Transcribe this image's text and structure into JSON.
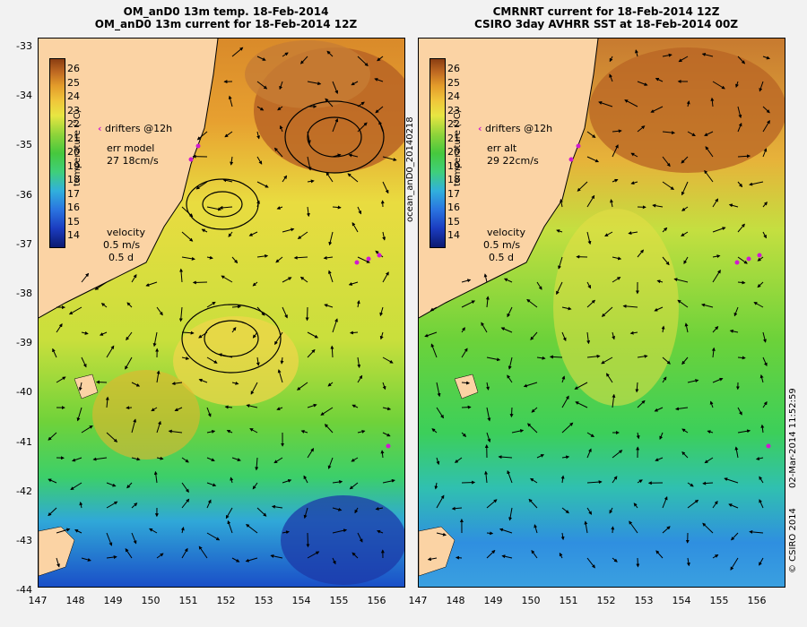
{
  "left_panel": {
    "title_line1": "OM_anD0 13m temp. 18-Feb-2014",
    "title_line2": "OM_anD0 13m current for 18-Feb-2014 12Z",
    "err_label": "err model",
    "err_values": "27 18cm/s",
    "side_label": "ocean_anD0_20140218"
  },
  "right_panel": {
    "title_line1": "CMRNRT current for 18-Feb-2014 12Z",
    "title_line2": "CSIRO 3day AVHRR SST at 18-Feb-2014 00Z",
    "err_label": "err alt",
    "err_values": "29 22cm/s",
    "side_label_date": "02-Mar-2014 11:52:59",
    "copyright": "© CSIRO 2014"
  },
  "legend": {
    "drifters": "drifters @12h",
    "velocity_title": "velocity",
    "velocity_scale": "0.5 m/s",
    "velocity_time": "0.5 d",
    "colorbar_title": "temperature (°C)",
    "colorbar_ticks": [
      "26",
      "25",
      "24",
      "23",
      "22",
      "21",
      "20",
      "19",
      "18",
      "17",
      "16",
      "15",
      "14"
    ]
  },
  "axes": {
    "lat_ticks": [
      "-33",
      "-34",
      "-35",
      "-36",
      "-37",
      "-38",
      "-39",
      "-40",
      "-41",
      "-42",
      "-43",
      "-44"
    ],
    "lon_ticks": [
      "147",
      "148",
      "149",
      "150",
      "151",
      "152",
      "153",
      "154",
      "155",
      "156"
    ]
  },
  "colors": {
    "land": "#fbd3a4",
    "drifter": "#d01ad0"
  }
}
